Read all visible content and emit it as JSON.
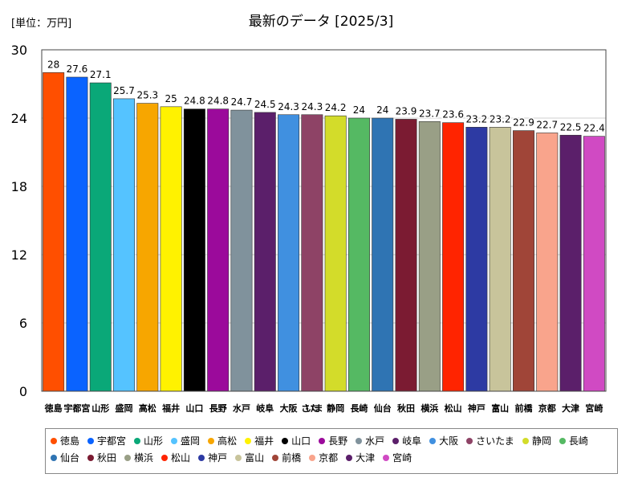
{
  "header": {
    "unit_label": "[単位：万円]",
    "title": "最新のデータ [2025/3]"
  },
  "chart_data": {
    "type": "bar",
    "title": "最新のデータ [2025/3]",
    "ylabel": "[単位：万円]",
    "ylim": [
      0,
      30
    ],
    "yticks": [
      0,
      6,
      12,
      18,
      24,
      30
    ],
    "grid": true,
    "legend_position": "bottom",
    "categories": [
      "徳島",
      "宇都宮",
      "山形",
      "盛岡",
      "高松",
      "福井",
      "山口",
      "長野",
      "水戸",
      "岐阜",
      "大阪",
      "さいたま",
      "静岡",
      "長崎",
      "仙台",
      "秋田",
      "横浜",
      "松山",
      "神戸",
      "富山",
      "前橋",
      "京都",
      "大津",
      "宮崎"
    ],
    "values": [
      28,
      27.6,
      27.1,
      25.7,
      25.3,
      25,
      24.8,
      24.8,
      24.7,
      24.5,
      24.3,
      24.3,
      24.2,
      24,
      24,
      23.9,
      23.7,
      23.6,
      23.2,
      23.2,
      22.9,
      22.7,
      22.5,
      22.4
    ],
    "value_labels": [
      "28",
      "27.6",
      "27.1",
      "25.7",
      "25.3",
      "25",
      "24.8",
      "24.8",
      "24.7",
      "24.5",
      "24.3",
      "24.3",
      "24.2",
      "24",
      "24",
      "23.9",
      "23.7",
      "23.6",
      "23.2",
      "23.2",
      "22.9",
      "22.7",
      "22.5",
      "22.4"
    ],
    "colors": [
      "#ff4f00",
      "#0a63ff",
      "#0aa878",
      "#55c3ff",
      "#f7a600",
      "#fff200",
      "#000000",
      "#9b0a9b",
      "#80929c",
      "#5b1f6a",
      "#4090e0",
      "#8e4366",
      "#d3dc2a",
      "#55b963",
      "#2f74b3",
      "#7b1b32",
      "#999f86",
      "#ff2400",
      "#2d3aa3",
      "#c8c49b",
      "#a04538",
      "#f9a48c",
      "#5b1f6a",
      "#d04ac3"
    ]
  }
}
